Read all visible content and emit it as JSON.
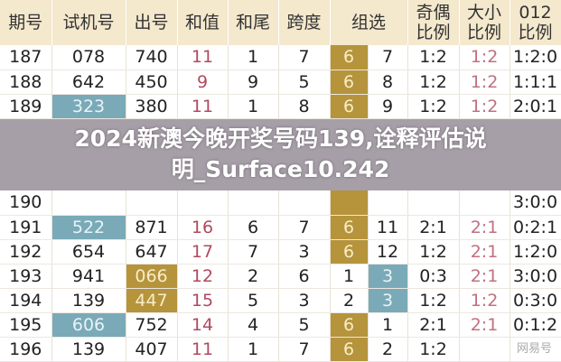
{
  "headers": [
    "期号",
    "试机号",
    "出号",
    "和值",
    "和尾",
    "跨度",
    "组选",
    "奇偶\n比例",
    "大小\n比例",
    "012\n比例"
  ],
  "rows": [
    {
      "qh": "187",
      "sj": "078",
      "ch": "740",
      "hz": "11",
      "hw": "1",
      "kd": "7",
      "zx1": "6",
      "zx2": "7",
      "jo": "1:2",
      "dx": "1:2",
      "r012": "1:2:0",
      "sj_hl": "",
      "ch_hl": "",
      "zx1_hl": "gold",
      "zx2_hl": ""
    },
    {
      "qh": "188",
      "sj": "642",
      "ch": "450",
      "hz": "9",
      "hw": "9",
      "kd": "5",
      "zx1": "6",
      "zx2": "8",
      "jo": "1:2",
      "dx": "1:2",
      "r012": "1:1:1",
      "sj_hl": "",
      "ch_hl": "",
      "zx1_hl": "gold",
      "zx2_hl": ""
    },
    {
      "qh": "189",
      "sj": "323",
      "ch": "380",
      "hz": "11",
      "hw": "1",
      "kd": "8",
      "zx1": "6",
      "zx2": "9",
      "jo": "1:2",
      "dx": "1:2",
      "r012": "2:0:1",
      "sj_hl": "blue",
      "ch_hl": "",
      "zx1_hl": "gold",
      "zx2_hl": ""
    },
    {
      "qh": "190",
      "sj": "",
      "ch": "",
      "hz": "",
      "hw": "",
      "kd": "",
      "zx1": "",
      "zx2": "",
      "jo": "",
      "dx": "",
      "r012": "3:0:0",
      "sj_hl": "",
      "ch_hl": "",
      "zx1_hl": "gold",
      "zx2_hl": ""
    },
    {
      "qh": "191",
      "sj": "522",
      "ch": "871",
      "hz": "16",
      "hw": "6",
      "kd": "7",
      "zx1": "6",
      "zx2": "11",
      "jo": "2:1",
      "dx": "2:1",
      "r012": "0:2:1",
      "sj_hl": "blue",
      "ch_hl": "",
      "zx1_hl": "gold",
      "zx2_hl": ""
    },
    {
      "qh": "192",
      "sj": "654",
      "ch": "647",
      "hz": "17",
      "hw": "7",
      "kd": "3",
      "zx1": "6",
      "zx2": "12",
      "jo": "1:2",
      "dx": "2:1",
      "r012": "1:2:0",
      "sj_hl": "",
      "ch_hl": "",
      "zx1_hl": "gold",
      "zx2_hl": ""
    },
    {
      "qh": "193",
      "sj": "941",
      "ch": "066",
      "hz": "12",
      "hw": "2",
      "kd": "6",
      "zx1": "1",
      "zx2": "3",
      "jo": "0:3",
      "dx": "2:1",
      "r012": "3:0:0",
      "sj_hl": "",
      "ch_hl": "gold",
      "zx1_hl": "",
      "zx2_hl": "blue"
    },
    {
      "qh": "194",
      "sj": "139",
      "ch": "447",
      "hz": "15",
      "hw": "5",
      "kd": "3",
      "zx1": "2",
      "zx2": "3",
      "jo": "1:2",
      "dx": "1:2",
      "r012": "0:3:0",
      "sj_hl": "",
      "ch_hl": "gold",
      "zx1_hl": "",
      "zx2_hl": "blue"
    },
    {
      "qh": "195",
      "sj": "606",
      "ch": "752",
      "hz": "14",
      "hw": "4",
      "kd": "5",
      "zx1": "6",
      "zx2": "1",
      "jo": "2:1",
      "dx": "2:1",
      "r012": "0:1:2",
      "sj_hl": "blue",
      "ch_hl": "",
      "zx1_hl": "gold",
      "zx2_hl": ""
    },
    {
      "qh": "196",
      "sj": "139",
      "ch": "407",
      "hz": "11",
      "hw": "1",
      "kd": "7",
      "zx1": "6",
      "zx2": "2",
      "jo": "1:2",
      "dx": "",
      "r012": "",
      "sj_hl": "",
      "ch_hl": "",
      "zx1_hl": "gold",
      "zx2_hl": ""
    }
  ],
  "overlay": {
    "line1": "2024新澳今晚开奖号码139,诠释评估说",
    "line2": "明_Surface10.242"
  },
  "watermark": "网易号",
  "colors": {
    "gold": "#b5943c",
    "blue": "#7aaab8",
    "red": "#b04a5e",
    "header_bg": "#f4e8cd"
  }
}
